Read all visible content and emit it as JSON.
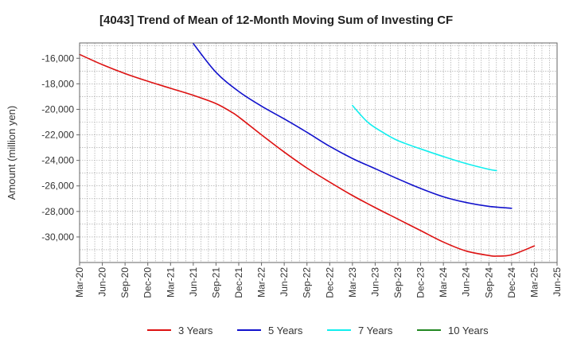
{
  "chart_data": {
    "type": "line",
    "title": "[4043]  Trend of Mean of 12-Month Moving Sum of Investing CF",
    "xlabel": "",
    "ylabel": "Amount (million yen)",
    "ylim": [
      -32000,
      -14800
    ],
    "yticks": [
      -16000,
      -18000,
      -20000,
      -22000,
      -24000,
      -26000,
      -28000,
      -30000
    ],
    "ytick_labels": [
      "-16,000",
      "-18,000",
      "-20,000",
      "-22,000",
      "-24,000",
      "-26,000",
      "-28,000",
      "-30,000"
    ],
    "xlim": [
      0,
      63
    ],
    "xticks": [
      0,
      3,
      6,
      9,
      12,
      15,
      18,
      21,
      24,
      27,
      30,
      33,
      36,
      39,
      42,
      45,
      48,
      51,
      54,
      57,
      60,
      63
    ],
    "xtick_labels": [
      "Mar-20",
      "Jun-20",
      "Sep-20",
      "Dec-20",
      "Mar-21",
      "Jun-21",
      "Sep-21",
      "Dec-21",
      "Mar-22",
      "Jun-22",
      "Sep-22",
      "Dec-22",
      "Mar-23",
      "Jun-23",
      "Sep-23",
      "Dec-23",
      "Mar-24",
      "Jun-24",
      "Sep-24",
      "Dec-24",
      "Mar-25",
      "Jun-25"
    ],
    "series": [
      {
        "name": "3 Years",
        "color": "#dd1111",
        "points": [
          [
            0,
            -15700
          ],
          [
            3,
            -16500
          ],
          [
            6,
            -17200
          ],
          [
            9,
            -17800
          ],
          [
            12,
            -18350
          ],
          [
            15,
            -18900
          ],
          [
            18,
            -19550
          ],
          [
            20,
            -20200
          ],
          [
            21,
            -20600
          ],
          [
            24,
            -22000
          ],
          [
            27,
            -23350
          ],
          [
            30,
            -24600
          ],
          [
            33,
            -25700
          ],
          [
            36,
            -26750
          ],
          [
            39,
            -27700
          ],
          [
            42,
            -28600
          ],
          [
            45,
            -29500
          ],
          [
            48,
            -30400
          ],
          [
            51,
            -31100
          ],
          [
            54,
            -31450
          ],
          [
            55,
            -31500
          ],
          [
            57,
            -31400
          ],
          [
            60,
            -30700
          ]
        ]
      },
      {
        "name": "5 Years",
        "color": "#1111cc",
        "points": [
          [
            15,
            -14850
          ],
          [
            18,
            -17100
          ],
          [
            21,
            -18600
          ],
          [
            24,
            -19750
          ],
          [
            27,
            -20750
          ],
          [
            30,
            -21800
          ],
          [
            33,
            -22900
          ],
          [
            36,
            -23850
          ],
          [
            39,
            -24650
          ],
          [
            42,
            -25450
          ],
          [
            45,
            -26200
          ],
          [
            48,
            -26850
          ],
          [
            51,
            -27300
          ],
          [
            54,
            -27600
          ],
          [
            57,
            -27750
          ]
        ]
      },
      {
        "name": "7 Years",
        "color": "#11eeee",
        "points": [
          [
            36,
            -19700
          ],
          [
            38,
            -21000
          ],
          [
            40,
            -21800
          ],
          [
            42,
            -22450
          ],
          [
            45,
            -23100
          ],
          [
            48,
            -23700
          ],
          [
            51,
            -24250
          ],
          [
            54,
            -24700
          ],
          [
            55,
            -24800
          ]
        ]
      },
      {
        "name": "10 Years",
        "color": "#228822",
        "points": []
      }
    ],
    "legend_position": "bottom",
    "grid": true
  }
}
